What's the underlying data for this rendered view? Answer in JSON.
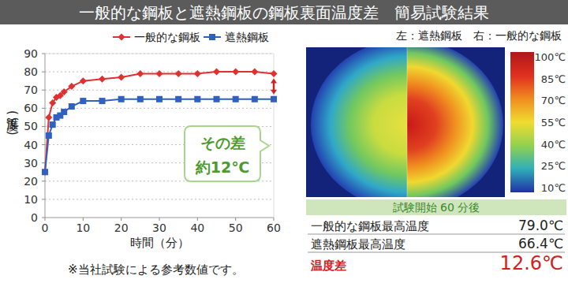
{
  "header": {
    "title": "一般的な鋼板と遮熱鋼板の鋼板裏面温度差　簡易試験結果"
  },
  "chart_data": {
    "type": "line",
    "xlabel": "時間（分）",
    "ylabel": "温度(℃)",
    "x": [
      0,
      1,
      2,
      3,
      4,
      5,
      7,
      10,
      15,
      20,
      25,
      30,
      35,
      40,
      45,
      50,
      55,
      60
    ],
    "series": [
      {
        "name": "一般的な鋼板",
        "color": "#e03030",
        "marker": "diamond",
        "values": [
          25,
          55,
          63,
          66,
          67,
          69,
          72,
          75,
          76,
          77,
          79,
          79,
          79,
          79,
          80,
          80,
          80,
          79
        ]
      },
      {
        "name": "遮熱鋼板",
        "color": "#3060c0",
        "marker": "square",
        "values": [
          25,
          45,
          51,
          55,
          56,
          58,
          61,
          64,
          64,
          65,
          65,
          65,
          65,
          65,
          65,
          65,
          65,
          65
        ]
      }
    ],
    "xlim": [
      0,
      60
    ],
    "xticks": [
      0,
      10,
      20,
      30,
      40,
      50,
      60
    ],
    "ylim": [
      0,
      90
    ],
    "yticks": [
      0,
      10,
      20,
      30,
      40,
      50,
      60,
      70,
      80,
      90
    ],
    "grid": true,
    "legend": "top",
    "annotations": [
      "その差",
      "約12℃"
    ]
  },
  "footnote": "※当社試験による参考数値です。",
  "thermal": {
    "caption": "左：遮熱鋼板　右：一般的な鋼板",
    "colorbar": {
      "range": [
        10,
        100
      ],
      "ticks": [
        {
          "value": 100,
          "label": "100℃"
        },
        {
          "value": 85,
          "label": "85℃"
        },
        {
          "value": 70,
          "label": "70℃"
        },
        {
          "value": 55,
          "label": "55℃"
        },
        {
          "value": 40,
          "label": "40℃"
        },
        {
          "value": 25,
          "label": "25℃"
        },
        {
          "value": 10,
          "label": "10℃"
        }
      ]
    },
    "condition": "試験開始 60 分後",
    "rows": [
      {
        "label": "一般的な鋼板最高温度",
        "value": "79.0℃"
      },
      {
        "label": "遮熱鋼板最高温度",
        "value": "66.4℃"
      },
      {
        "label": "温度差",
        "value": "12.6℃"
      }
    ]
  }
}
